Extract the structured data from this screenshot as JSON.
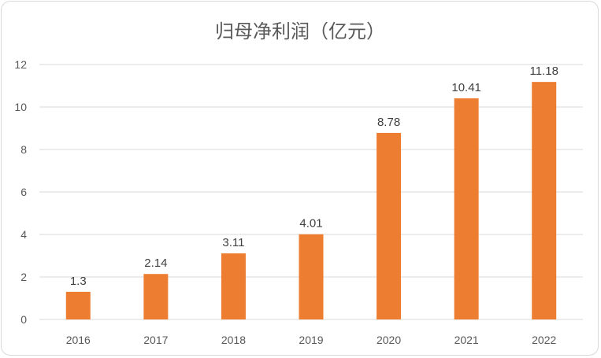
{
  "chart_data": {
    "type": "bar",
    "title": "归母净利润（亿元）",
    "categories": [
      "2016",
      "2017",
      "2018",
      "2019",
      "2020",
      "2021",
      "2022"
    ],
    "values": [
      1.3,
      2.14,
      3.11,
      4.01,
      8.78,
      10.41,
      11.18
    ],
    "data_labels": [
      "1.3",
      "2.14",
      "3.11",
      "4.01",
      "8.78",
      "10.41",
      "11.18"
    ],
    "yticks": [
      "0",
      "2",
      "4",
      "6",
      "8",
      "10",
      "12"
    ],
    "ylim": [
      0,
      12
    ],
    "xlabel": "",
    "ylabel": "",
    "grid": true,
    "legend": "none",
    "bar_color": "#ED7D31"
  }
}
